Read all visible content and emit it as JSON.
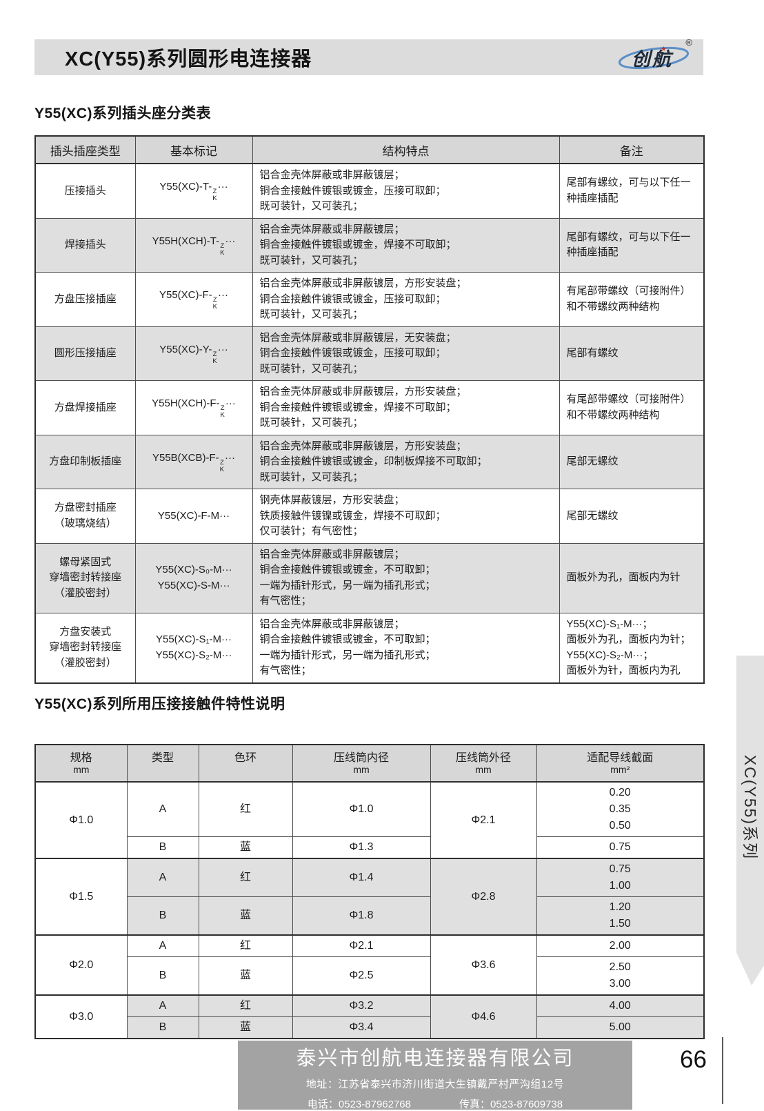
{
  "header": {
    "title": "XC(Y55)系列圆形电连接器",
    "logo": {
      "text": "创航",
      "star": "★",
      "registered": "®"
    }
  },
  "side_tab": {
    "label": "XC(Y55)系列"
  },
  "section1": {
    "title": "Y55(XC)系列插头座分类表",
    "columns": [
      "插头插座类型",
      "基本标记",
      "结构特点",
      "备注"
    ],
    "rows": [
      {
        "type": [
          "压接插头"
        ],
        "marks": [
          "Y55(XC)-T-[Z/K]···"
        ],
        "features": [
          "铝合金壳体屏蔽或非屏蔽镀层；",
          "铜合金接触件镀银或镀金，压接可取卸；",
          "既可装针，又可装孔；"
        ],
        "note": [
          "尾部有螺纹，可与以下任一种插座插配"
        ]
      },
      {
        "type": [
          "焊接插头"
        ],
        "marks": [
          "Y55H(XCH)-T-[Z/K]···"
        ],
        "features": [
          "铝合金壳体屏蔽或非屏蔽镀层；",
          "铜合金接触件镀银或镀金，焊接不可取卸；",
          "既可装针，又可装孔；"
        ],
        "note": [
          "尾部有螺纹，可与以下任一种插座插配"
        ]
      },
      {
        "type": [
          "方盘压接插座"
        ],
        "marks": [
          "Y55(XC)-F-[Z/K]···"
        ],
        "features": [
          "铝合金壳体屏蔽或非屏蔽镀层，方形安装盘；",
          "铜合金接触件镀银或镀金，压接可取卸；",
          "既可装针，又可装孔；"
        ],
        "note": [
          "有尾部带螺纹（可接附件）和不带螺纹两种结构"
        ]
      },
      {
        "type": [
          "圆形压接插座"
        ],
        "marks": [
          "Y55(XC)-Y-[Z/K]···"
        ],
        "features": [
          "铝合金壳体屏蔽或非屏蔽镀层，无安装盘；",
          "铜合金接触件镀银或镀金，压接可取卸；",
          "既可装针，又可装孔；"
        ],
        "note": [
          "尾部有螺纹"
        ]
      },
      {
        "type": [
          "方盘焊接插座"
        ],
        "marks": [
          "Y55H(XCH)-F-[Z/K]···"
        ],
        "features": [
          "铝合金壳体屏蔽或非屏蔽镀层，方形安装盘；",
          "铜合金接触件镀银或镀金，焊接不可取卸；",
          "既可装针，又可装孔；"
        ],
        "note": [
          "有尾部带螺纹（可接附件）和不带螺纹两种结构"
        ]
      },
      {
        "type": [
          "方盘印制板插座"
        ],
        "marks": [
          "Y55B(XCB)-F-[Z/K]···"
        ],
        "features": [
          "铝合金壳体屏蔽或非屏蔽镀层，方形安装盘；",
          "铜合金接触件镀银或镀金，印制板焊接不可取卸；",
          "既可装针，又可装孔；"
        ],
        "note": [
          "尾部无螺纹"
        ]
      },
      {
        "type": [
          "方盘密封插座",
          "（玻璃烧结）"
        ],
        "marks": [
          "Y55(XC)-F-M···"
        ],
        "features": [
          "钢壳体屏蔽镀层，方形安装盘；",
          "铁质接触件镀镍或镀金，焊接不可取卸；",
          "仅可装针；有气密性；"
        ],
        "note": [
          "尾部无螺纹"
        ]
      },
      {
        "type": [
          "螺母紧固式",
          "穿墙密封转接座",
          "（灌胶密封）"
        ],
        "marks": [
          "Y55(XC)-S₀-M···",
          "Y55(XC)-S-M···"
        ],
        "features": [
          "铝合金壳体屏蔽或非屏蔽镀层；",
          "铜合金接触件镀银或镀金，不可取卸；",
          "一端为插针形式，另一端为插孔形式；",
          "有气密性；"
        ],
        "note": [
          "面板外为孔，面板内为针"
        ]
      },
      {
        "type": [
          "方盘安装式",
          "穿墙密封转接座",
          "（灌胶密封）"
        ],
        "marks": [
          "Y55(XC)-S₁-M···",
          "Y55(XC)-S₂-M···"
        ],
        "features": [
          "铝合金壳体屏蔽或非屏蔽镀层；",
          "铜合金接触件镀银或镀金，不可取卸；",
          "一端为插针形式，另一端为插孔形式；",
          "有气密性；"
        ],
        "note": [
          "Y55(XC)-S₁-M···；",
          "面板外为孔，面板内为针；",
          "Y55(XC)-S₂-M···；",
          "面板外为针，面板内为孔"
        ]
      }
    ]
  },
  "section2": {
    "title": "Y55(XC)系列所用压接接触件特性说明",
    "columns": [
      {
        "label": "规格",
        "sub": "mm"
      },
      {
        "label": "类型",
        "sub": ""
      },
      {
        "label": "色环",
        "sub": ""
      },
      {
        "label": "压线筒内径",
        "sub": "mm"
      },
      {
        "label": "压线筒外径",
        "sub": "mm"
      },
      {
        "label": "适配导线截面",
        "sub": "mm²"
      }
    ],
    "groups": [
      {
        "spec": "Φ1.0",
        "outer": "Φ2.1",
        "rows": [
          {
            "type": "A",
            "ring": "红",
            "inner": "Φ1.0",
            "sections": [
              "0.20",
              "0.35",
              "0.50"
            ]
          },
          {
            "type": "B",
            "ring": "蓝",
            "inner": "Φ1.3",
            "sections": [
              "0.75"
            ]
          }
        ]
      },
      {
        "spec": "Φ1.5",
        "outer": "Φ2.8",
        "rows": [
          {
            "type": "A",
            "ring": "红",
            "inner": "Φ1.4",
            "sections": [
              "0.75",
              "1.00"
            ]
          },
          {
            "type": "B",
            "ring": "蓝",
            "inner": "Φ1.8",
            "sections": [
              "1.20",
              "1.50"
            ]
          }
        ]
      },
      {
        "spec": "Φ2.0",
        "outer": "Φ3.6",
        "rows": [
          {
            "type": "A",
            "ring": "红",
            "inner": "Φ2.1",
            "sections": [
              "2.00"
            ]
          },
          {
            "type": "B",
            "ring": "蓝",
            "inner": "Φ2.5",
            "sections": [
              "2.50",
              "3.00"
            ]
          }
        ]
      },
      {
        "spec": "Φ3.0",
        "outer": "Φ4.6",
        "rows": [
          {
            "type": "A",
            "ring": "红",
            "inner": "Φ3.2",
            "sections": [
              "4.00"
            ]
          },
          {
            "type": "B",
            "ring": "蓝",
            "inner": "Φ3.4",
            "sections": [
              "5.00"
            ]
          }
        ]
      }
    ]
  },
  "footer": {
    "company": "泰兴市创航电连接器有限公司",
    "address": "地址：江苏省泰兴市济川街道大生镇戴严村严沟组12号",
    "phone": "电话：0523-87962768",
    "fax": "传真：0523-87609738",
    "page_number": "66"
  },
  "colors": {
    "header_bar": "#dcdcdc",
    "table_header": "#d7d7d7",
    "row_shade": "#dfdfdf",
    "footer_box": "#a3a3a3",
    "logo_swoosh": "#5c8fc7",
    "logo_star": "#c43028"
  }
}
